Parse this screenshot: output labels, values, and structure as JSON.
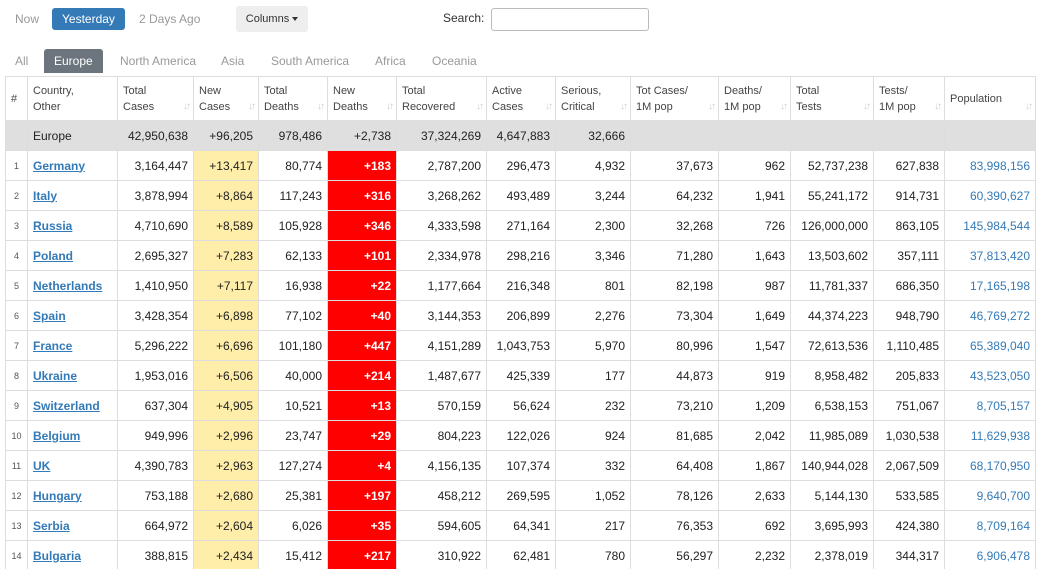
{
  "toolbar": {
    "time_tabs": [
      "Now",
      "Yesterday",
      "2 Days Ago"
    ],
    "columns_button": "Columns",
    "search_label": "Search:"
  },
  "region_tabs": [
    "All",
    "Europe",
    "North America",
    "Asia",
    "South America",
    "Africa",
    "Oceania"
  ],
  "table": {
    "headers": [
      [
        "#"
      ],
      [
        "Country,",
        "Other"
      ],
      [
        "Total",
        "Cases"
      ],
      [
        "New",
        "Cases"
      ],
      [
        "Total",
        "Deaths"
      ],
      [
        "New",
        "Deaths"
      ],
      [
        "Total",
        "Recovered"
      ],
      [
        "Active",
        "Cases"
      ],
      [
        "Serious,",
        "Critical"
      ],
      [
        "Tot Cases/",
        "1M pop"
      ],
      [
        "Deaths/",
        "1M pop"
      ],
      [
        "Total",
        "Tests"
      ],
      [
        "Tests/",
        "1M pop"
      ],
      [
        "Population"
      ]
    ],
    "total_row": [
      "Europe",
      "42,950,638",
      "+96,205",
      "978,486",
      "+2,738",
      "37,324,269",
      "4,647,883",
      "32,666"
    ],
    "rows": [
      [
        "1",
        "Germany",
        "3,164,447",
        "+13,417",
        "80,774",
        "+183",
        "2,787,200",
        "296,473",
        "4,932",
        "37,673",
        "962",
        "52,737,238",
        "627,838",
        "83,998,156"
      ],
      [
        "2",
        "Italy",
        "3,878,994",
        "+8,864",
        "117,243",
        "+316",
        "3,268,262",
        "493,489",
        "3,244",
        "64,232",
        "1,941",
        "55,241,172",
        "914,731",
        "60,390,627"
      ],
      [
        "3",
        "Russia",
        "4,710,690",
        "+8,589",
        "105,928",
        "+346",
        "4,333,598",
        "271,164",
        "2,300",
        "32,268",
        "726",
        "126,000,000",
        "863,105",
        "145,984,544"
      ],
      [
        "4",
        "Poland",
        "2,695,327",
        "+7,283",
        "62,133",
        "+101",
        "2,334,978",
        "298,216",
        "3,346",
        "71,280",
        "1,643",
        "13,503,602",
        "357,111",
        "37,813,420"
      ],
      [
        "5",
        "Netherlands",
        "1,410,950",
        "+7,117",
        "16,938",
        "+22",
        "1,177,664",
        "216,348",
        "801",
        "82,198",
        "987",
        "11,781,337",
        "686,350",
        "17,165,198"
      ],
      [
        "6",
        "Spain",
        "3,428,354",
        "+6,898",
        "77,102",
        "+40",
        "3,144,353",
        "206,899",
        "2,276",
        "73,304",
        "1,649",
        "44,374,223",
        "948,790",
        "46,769,272"
      ],
      [
        "7",
        "France",
        "5,296,222",
        "+6,696",
        "101,180",
        "+447",
        "4,151,289",
        "1,043,753",
        "5,970",
        "80,996",
        "1,547",
        "72,613,536",
        "1,110,485",
        "65,389,040"
      ],
      [
        "8",
        "Ukraine",
        "1,953,016",
        "+6,506",
        "40,000",
        "+214",
        "1,487,677",
        "425,339",
        "177",
        "44,873",
        "919",
        "8,958,482",
        "205,833",
        "43,523,050"
      ],
      [
        "9",
        "Switzerland",
        "637,304",
        "+4,905",
        "10,521",
        "+13",
        "570,159",
        "56,624",
        "232",
        "73,210",
        "1,209",
        "6,538,153",
        "751,067",
        "8,705,157"
      ],
      [
        "10",
        "Belgium",
        "949,996",
        "+2,996",
        "23,747",
        "+29",
        "804,223",
        "122,026",
        "924",
        "81,685",
        "2,042",
        "11,985,089",
        "1,030,538",
        "11,629,938"
      ],
      [
        "11",
        "UK",
        "4,390,783",
        "+2,963",
        "127,274",
        "+4",
        "4,156,135",
        "107,374",
        "332",
        "64,408",
        "1,867",
        "140,944,028",
        "2,067,509",
        "68,170,950"
      ],
      [
        "12",
        "Hungary",
        "753,188",
        "+2,680",
        "25,381",
        "+197",
        "458,212",
        "269,595",
        "1,052",
        "78,126",
        "2,633",
        "5,144,130",
        "533,585",
        "9,640,700"
      ],
      [
        "13",
        "Serbia",
        "664,972",
        "+2,604",
        "6,026",
        "+35",
        "594,605",
        "64,341",
        "217",
        "76,353",
        "692",
        "3,695,993",
        "424,380",
        "8,709,164"
      ],
      [
        "14",
        "Bulgaria",
        "388,815",
        "+2,434",
        "15,412",
        "+217",
        "310,922",
        "62,481",
        "780",
        "56,297",
        "2,232",
        "2,378,019",
        "344,317",
        "6,906,478"
      ]
    ]
  }
}
